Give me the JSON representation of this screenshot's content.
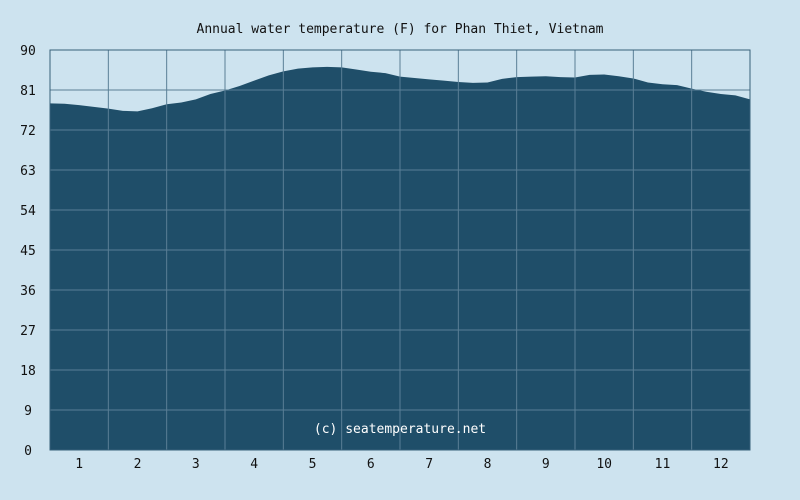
{
  "chart_data": {
    "type": "area",
    "title": "Annual water temperature (F) for Phan Thiet, Vietnam",
    "xlabel": "",
    "ylabel": "",
    "ylim": [
      0,
      90
    ],
    "yticks": [
      "0",
      "9",
      "18",
      "27",
      "36",
      "45",
      "54",
      "63",
      "72",
      "81",
      "90"
    ],
    "xticks": [
      "1",
      "2",
      "3",
      "4",
      "5",
      "6",
      "7",
      "8",
      "9",
      "10",
      "11",
      "12"
    ],
    "xlim": [
      0.5,
      12.5
    ],
    "grid": true,
    "credit": "(c) seatemperature.net",
    "colors": {
      "background": "#cde3ef",
      "plot_fill": "#1f4e69",
      "grid": "#5a7f96",
      "plot_border": "#37607a"
    },
    "series": [
      {
        "x": [
          0.5,
          0.75,
          1.0,
          1.25,
          1.5,
          1.75,
          2.0,
          2.25,
          2.5,
          2.75,
          3.0,
          3.25,
          3.5,
          3.75,
          4.0,
          4.25,
          4.5,
          4.75,
          5.0,
          5.25,
          5.5,
          5.75,
          6.0,
          6.25,
          6.5,
          6.75,
          7.0,
          7.25,
          7.5,
          7.75,
          8.0,
          8.25,
          8.5,
          8.75,
          9.0,
          9.25,
          9.5,
          9.75,
          10.0,
          10.25,
          10.5,
          10.75,
          11.0,
          11.25,
          11.5,
          11.75,
          12.0,
          12.25,
          12.5
        ],
        "values": [
          78.0,
          77.9,
          77.6,
          77.2,
          76.8,
          76.3,
          76.2,
          76.9,
          77.8,
          78.2,
          78.9,
          80.1,
          80.9,
          81.9,
          83.1,
          84.3,
          85.2,
          85.8,
          86.1,
          86.2,
          86.1,
          85.6,
          85.1,
          84.8,
          84.0,
          83.7,
          83.4,
          83.1,
          82.8,
          82.6,
          82.7,
          83.5,
          83.9,
          84.0,
          84.1,
          83.9,
          83.8,
          84.4,
          84.5,
          84.1,
          83.6,
          82.7,
          82.3,
          82.1,
          81.3,
          80.6,
          80.1,
          79.8,
          78.9
        ]
      }
    ]
  }
}
